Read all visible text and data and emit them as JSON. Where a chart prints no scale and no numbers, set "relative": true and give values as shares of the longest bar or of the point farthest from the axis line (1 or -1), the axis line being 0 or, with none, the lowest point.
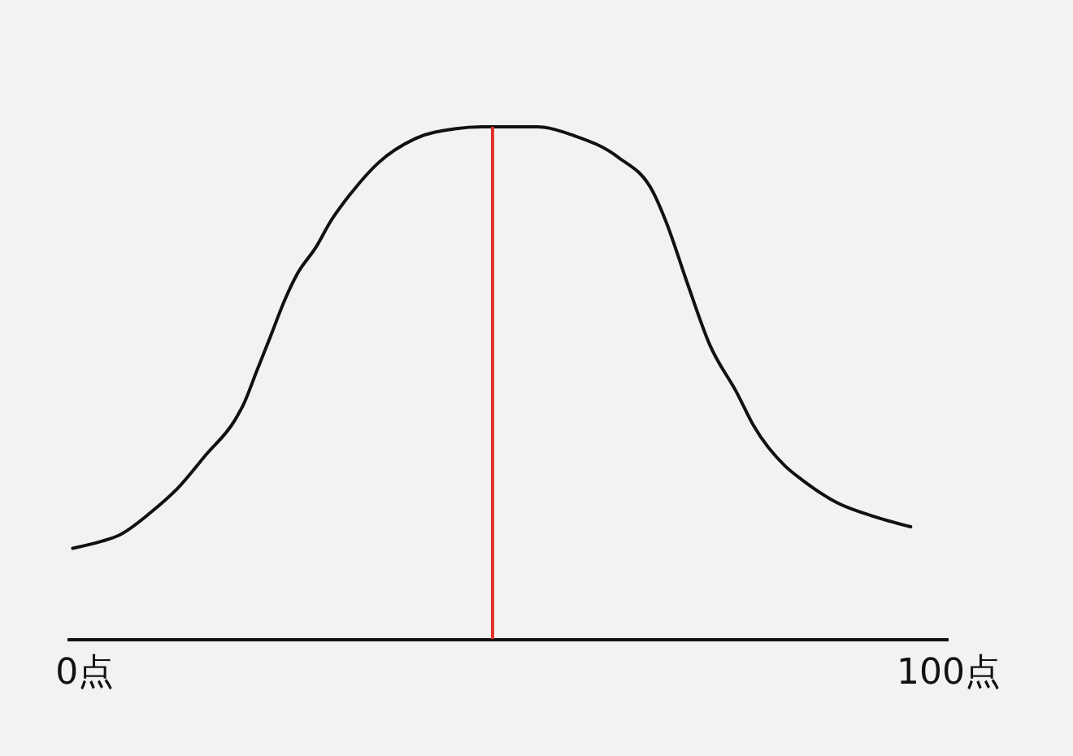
{
  "chart_data": {
    "type": "line",
    "relative": true,
    "tick_labels": "x",
    "line_style": "solid",
    "x": [
      -1.3,
      2.1,
      4.0,
      7.8,
      10.9,
      14.1,
      17.5,
      18.5,
      20.0,
      21.6,
      23.2,
      24.7,
      26.9,
      28.5,
      31.0,
      34.1,
      38.5,
      42.9,
      46.1,
      52.4,
      56.7,
      61.8,
      65.9,
      67.4,
      69.9,
      72.4,
      75.6,
      77.5,
      81.2,
      83.1,
      87.2,
      91.3,
      95.7
    ],
    "values": [
      0.177,
      0.191,
      0.202,
      0.248,
      0.295,
      0.359,
      0.428,
      0.459,
      0.523,
      0.591,
      0.66,
      0.713,
      0.766,
      0.814,
      0.872,
      0.93,
      0.978,
      0.996,
      1.0,
      1.0,
      0.983,
      0.941,
      0.872,
      0.814,
      0.692,
      0.576,
      0.48,
      0.417,
      0.337,
      0.311,
      0.266,
      0.24,
      0.219
    ],
    "color": "#111111",
    "xlim": [
      -2,
      100
    ],
    "xticks": [
      {
        "value": 0,
        "label": "0点"
      },
      {
        "value": 100,
        "label": "100点"
      }
    ],
    "ref_lines": [
      {
        "axis": "x",
        "value": 47.3,
        "color": "#e3302a"
      }
    ]
  }
}
